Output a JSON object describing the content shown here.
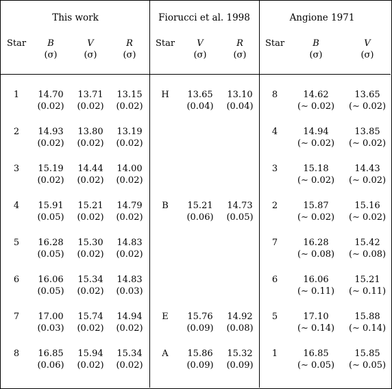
{
  "groups": [
    {
      "title": "This work",
      "star_header": "Star",
      "cols": [
        "B",
        "V",
        "R"
      ],
      "sigma": "(σ)"
    },
    {
      "title": "Fiorucci et al. 1998",
      "star_header": "Star",
      "cols": [
        "V",
        "R"
      ],
      "sigma": "(σ)"
    },
    {
      "title": "Angione 1971",
      "star_header": "Star",
      "cols": [
        "B",
        "V"
      ],
      "sigma": "(σ)"
    }
  ],
  "rows": [
    {
      "this": {
        "star": "1",
        "B": "14.70",
        "Bs": "(0.02)",
        "V": "13.71",
        "Vs": "(0.02)",
        "R": "13.15",
        "Rs": "(0.02)"
      },
      "fio": {
        "star": "H",
        "V": "13.65",
        "Vs": "(0.04)",
        "R": "13.10",
        "Rs": "(0.04)"
      },
      "ang": {
        "star": "8",
        "B": "14.62",
        "Bs": "(∼ 0.02)",
        "V": "13.65",
        "Vs": "(∼ 0.02)"
      }
    },
    {
      "this": {
        "star": "2",
        "B": "14.93",
        "Bs": "(0.02)",
        "V": "13.80",
        "Vs": "(0.02)",
        "R": "13.19",
        "Rs": "(0.02)"
      },
      "fio": {
        "star": "",
        "V": "",
        "Vs": "",
        "R": "",
        "Rs": ""
      },
      "ang": {
        "star": "4",
        "B": "14.94",
        "Bs": "(∼ 0.02)",
        "V": "13.85",
        "Vs": "(∼ 0.02)"
      }
    },
    {
      "this": {
        "star": "3",
        "B": "15.19",
        "Bs": "(0.02)",
        "V": "14.44",
        "Vs": "(0.02)",
        "R": "14.00",
        "Rs": "(0.02)"
      },
      "fio": {
        "star": "",
        "V": "",
        "Vs": "",
        "R": "",
        "Rs": ""
      },
      "ang": {
        "star": "3",
        "B": "15.18",
        "Bs": "(∼ 0.02)",
        "V": "14.43",
        "Vs": "(∼ 0.02)"
      }
    },
    {
      "this": {
        "star": "4",
        "B": "15.91",
        "Bs": "(0.05)",
        "V": "15.21",
        "Vs": "(0.02)",
        "R": "14.79",
        "Rs": "(0.02)"
      },
      "fio": {
        "star": "B",
        "V": "15.21",
        "Vs": "(0.06)",
        "R": "14.73",
        "Rs": "(0.05)"
      },
      "ang": {
        "star": "2",
        "B": "15.87",
        "Bs": "(∼ 0.02)",
        "V": "15.16",
        "Vs": "(∼ 0.02)"
      }
    },
    {
      "this": {
        "star": "5",
        "B": "16.28",
        "Bs": "(0.05)",
        "V": "15.30",
        "Vs": "(0.02)",
        "R": "14.83",
        "Rs": "(0.02)"
      },
      "fio": {
        "star": "",
        "V": "",
        "Vs": "",
        "R": "",
        "Rs": ""
      },
      "ang": {
        "star": "7",
        "B": "16.28",
        "Bs": "(∼ 0.08)",
        "V": "15.42",
        "Vs": "(∼ 0.08)"
      }
    },
    {
      "this": {
        "star": "6",
        "B": "16.06",
        "Bs": "(0.05)",
        "V": "15.34",
        "Vs": "(0.02)",
        "R": "14.83",
        "Rs": "(0.03)"
      },
      "fio": {
        "star": "",
        "V": "",
        "Vs": "",
        "R": "",
        "Rs": ""
      },
      "ang": {
        "star": "6",
        "B": "16.06",
        "Bs": "(∼ 0.11)",
        "V": "15.21",
        "Vs": "(∼ 0.11)"
      }
    },
    {
      "this": {
        "star": "7",
        "B": "17.00",
        "Bs": "(0.03)",
        "V": "15.74",
        "Vs": "(0.02)",
        "R": "14.94",
        "Rs": "(0.02)"
      },
      "fio": {
        "star": "E",
        "V": "15.76",
        "Vs": "(0.09)",
        "R": "14.92",
        "Rs": "(0.08)"
      },
      "ang": {
        "star": "5",
        "B": "17.10",
        "Bs": "(∼ 0.14)",
        "V": "15.88",
        "Vs": "(∼ 0.14)"
      }
    },
    {
      "this": {
        "star": "8",
        "B": "16.85",
        "Bs": "(0.06)",
        "V": "15.94",
        "Vs": "(0.02)",
        "R": "15.34",
        "Rs": "(0.02)"
      },
      "fio": {
        "star": "A",
        "V": "15.86",
        "Vs": "(0.09)",
        "R": "15.32",
        "Rs": "(0.09)"
      },
      "ang": {
        "star": "1",
        "B": "16.85",
        "Bs": "(∼ 0.05)",
        "V": "15.85",
        "Vs": "(∼ 0.05)"
      }
    }
  ]
}
